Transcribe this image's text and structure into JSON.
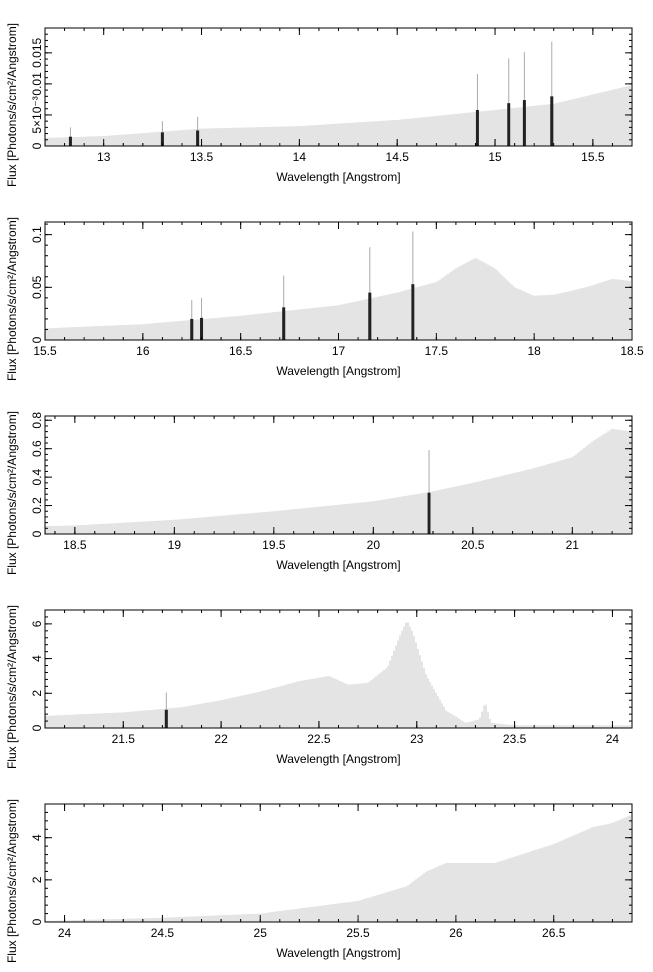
{
  "chart_data": [
    {
      "type": "bar",
      "xlabel": "Wavelength [Angstrom]",
      "ylabel": "Flux [Photons/s/cm²/Angstrom]",
      "xlim": [
        12.7,
        15.7
      ],
      "ylim": [
        0,
        0.019
      ],
      "xticks": [
        13,
        13.5,
        14,
        14.5,
        15,
        15.5
      ],
      "yticks": [
        0,
        0.005,
        0.01,
        0.015
      ],
      "ytick_labels": [
        "0",
        "5×10⁻³",
        "0.01",
        "0.015"
      ],
      "continuum": [
        [
          12.7,
          0.0013
        ],
        [
          13.0,
          0.0016
        ],
        [
          13.5,
          0.0028
        ],
        [
          14.0,
          0.0032
        ],
        [
          14.5,
          0.0042
        ],
        [
          15.0,
          0.0058
        ],
        [
          15.3,
          0.0068
        ],
        [
          15.5,
          0.0083
        ],
        [
          15.7,
          0.0098
        ]
      ],
      "lines": [
        {
          "x": 12.83,
          "value": 0.0015,
          "err": 0.0015
        },
        {
          "x": 13.3,
          "value": 0.0022,
          "err": 0.0018
        },
        {
          "x": 13.48,
          "value": 0.0025,
          "err": 0.0022
        },
        {
          "x": 14.91,
          "value": 0.0058,
          "err": 0.0058
        },
        {
          "x": 15.07,
          "value": 0.0069,
          "err": 0.0072
        },
        {
          "x": 15.15,
          "value": 0.0074,
          "err": 0.0077
        },
        {
          "x": 15.29,
          "value": 0.008,
          "err": 0.0088
        }
      ]
    },
    {
      "type": "bar",
      "xlabel": "Wavelength [Angstrom]",
      "ylabel": "Flux [Photons/s/cm²/Angstrom]",
      "xlim": [
        15.5,
        18.5
      ],
      "ylim": [
        0,
        0.112
      ],
      "xticks": [
        15.5,
        16,
        16.5,
        17,
        17.5,
        18,
        18.5
      ],
      "yticks": [
        0,
        0.05,
        0.1
      ],
      "ytick_labels": [
        "0",
        "0.05",
        "0.1"
      ],
      "continuum": [
        [
          15.5,
          0.011
        ],
        [
          16.0,
          0.015
        ],
        [
          16.5,
          0.023
        ],
        [
          17.0,
          0.033
        ],
        [
          17.3,
          0.045
        ],
        [
          17.5,
          0.055
        ],
        [
          17.6,
          0.068
        ],
        [
          17.7,
          0.078
        ],
        [
          17.8,
          0.068
        ],
        [
          17.9,
          0.05
        ],
        [
          18.0,
          0.042
        ],
        [
          18.1,
          0.043
        ],
        [
          18.2,
          0.047
        ],
        [
          18.3,
          0.052
        ],
        [
          18.4,
          0.058
        ],
        [
          18.5,
          0.056
        ]
      ],
      "lines": [
        {
          "x": 16.25,
          "value": 0.02,
          "err": 0.018
        },
        {
          "x": 16.3,
          "value": 0.021,
          "err": 0.019
        },
        {
          "x": 16.72,
          "value": 0.031,
          "err": 0.03
        },
        {
          "x": 17.16,
          "value": 0.045,
          "err": 0.043
        },
        {
          "x": 17.38,
          "value": 0.053,
          "err": 0.05
        }
      ]
    },
    {
      "type": "bar",
      "xlabel": "Wavelength [Angstrom]",
      "ylabel": "Flux [Photons/s/cm²/Angstrom]",
      "xlim": [
        18.35,
        21.3
      ],
      "ylim": [
        0,
        0.83
      ],
      "xticks": [
        18.5,
        19,
        19.5,
        20,
        20.5,
        21
      ],
      "yticks": [
        0,
        0.2,
        0.4,
        0.6,
        0.8
      ],
      "ytick_labels": [
        "0",
        "0.2",
        "0.4",
        "0.6",
        "0.8"
      ],
      "continuum": [
        [
          18.35,
          0.055
        ],
        [
          18.5,
          0.06
        ],
        [
          19.0,
          0.1
        ],
        [
          19.5,
          0.16
        ],
        [
          20.0,
          0.23
        ],
        [
          20.3,
          0.3
        ],
        [
          20.5,
          0.36
        ],
        [
          20.8,
          0.46
        ],
        [
          21.0,
          0.54
        ],
        [
          21.1,
          0.65
        ],
        [
          21.2,
          0.74
        ],
        [
          21.3,
          0.72
        ]
      ],
      "lines": [
        {
          "x": 20.28,
          "value": 0.29,
          "err": 0.3
        }
      ]
    },
    {
      "type": "bar",
      "xlabel": "Wavelength [Angstrom]",
      "ylabel": "Flux [Photons/s/cm²/Angstrom]",
      "xlim": [
        21.1,
        24.1
      ],
      "ylim": [
        0,
        6.8
      ],
      "xticks": [
        21.5,
        22,
        22.5,
        23,
        23.5,
        24
      ],
      "yticks": [
        0,
        2,
        4,
        6
      ],
      "ytick_labels": [
        "0",
        "2",
        "4",
        "6"
      ],
      "continuum": [
        [
          21.1,
          0.7
        ],
        [
          21.5,
          0.9
        ],
        [
          21.8,
          1.2
        ],
        [
          22.0,
          1.6
        ],
        [
          22.2,
          2.1
        ],
        [
          22.4,
          2.7
        ],
        [
          22.55,
          3.0
        ],
        [
          22.65,
          2.5
        ],
        [
          22.75,
          2.6
        ],
        [
          22.85,
          3.5
        ],
        [
          22.92,
          5.5
        ],
        [
          22.95,
          6.2
        ],
        [
          22.98,
          5.5
        ],
        [
          23.05,
          3.0
        ],
        [
          23.15,
          1.0
        ],
        [
          23.25,
          0.3
        ],
        [
          23.32,
          0.5
        ],
        [
          23.35,
          1.5
        ],
        [
          23.38,
          0.3
        ],
        [
          23.5,
          0.15
        ],
        [
          24.1,
          0.15
        ]
      ],
      "lines": [
        {
          "x": 21.72,
          "value": 1.05,
          "err": 1.0
        }
      ]
    },
    {
      "type": "bar",
      "xlabel": "Wavelength [Angstrom]",
      "ylabel": "Flux [Photons/s/cm²/Angstrom]",
      "xlim": [
        23.9,
        26.9
      ],
      "ylim": [
        0,
        5.6
      ],
      "xticks": [
        24,
        24.5,
        25,
        25.5,
        26,
        26.5
      ],
      "yticks": [
        0,
        2,
        4
      ],
      "ytick_labels": [
        "0",
        "2",
        "4"
      ],
      "continuum": [
        [
          23.9,
          0.05
        ],
        [
          24.5,
          0.2
        ],
        [
          25.0,
          0.4
        ],
        [
          25.5,
          1.0
        ],
        [
          25.75,
          1.7
        ],
        [
          25.85,
          2.4
        ],
        [
          25.95,
          2.8
        ],
        [
          26.2,
          2.8
        ],
        [
          26.5,
          3.7
        ],
        [
          26.7,
          4.5
        ],
        [
          26.8,
          4.7
        ],
        [
          26.9,
          5.1
        ]
      ],
      "lines": []
    }
  ]
}
